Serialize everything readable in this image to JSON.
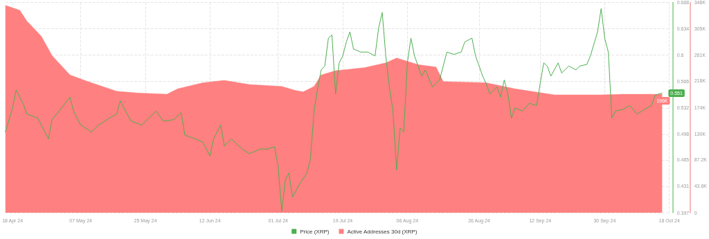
{
  "chart_data": {
    "type": "line",
    "legend": "bottom",
    "grid": true,
    "xlim": [
      "2024-04-16",
      "2024-10-18"
    ],
    "xticks": [
      {
        "value": "2024-04-18",
        "label": "18 Apr 24"
      },
      {
        "value": "2024-05-07",
        "label": "07 May 24"
      },
      {
        "value": "2024-05-25",
        "label": "25 May 24"
      },
      {
        "value": "2024-06-12",
        "label": "12 Jun 24"
      },
      {
        "value": "2024-07-01",
        "label": "01 Jul 24"
      },
      {
        "value": "2024-07-19",
        "label": "19 Jul 24"
      },
      {
        "value": "2024-08-06",
        "label": "06 Aug 24"
      },
      {
        "value": "2024-08-26",
        "label": "26 Aug 24"
      },
      {
        "value": "2024-09-12",
        "label": "12 Sep 24"
      },
      {
        "value": "2024-09-30",
        "label": "30 Sep 24"
      },
      {
        "value": "2024-10-18",
        "label": "18 Oct 24"
      }
    ],
    "ylim": [
      0.397,
      0.668
    ],
    "yticks": [
      0.397,
      0.431,
      0.465,
      0.498,
      0.532,
      0.566,
      0.6,
      0.634,
      0.668
    ],
    "y2lim": [
      0,
      348000
    ],
    "y2ticks": [
      0,
      {
        "value": 43600,
        "label": "43.6K"
      },
      {
        "value": 87200,
        "label": "87.2K"
      },
      {
        "value": 130000,
        "label": "130K"
      },
      {
        "value": 174000,
        "label": "174K"
      },
      {
        "value": 218000,
        "label": "218K"
      },
      {
        "value": 261000,
        "label": "261K"
      },
      {
        "value": 305000,
        "label": "305K"
      },
      {
        "value": 348000,
        "label": "348K"
      }
    ],
    "series": [
      {
        "name": "Active Addresses 30d (XRP)",
        "type": "area",
        "axis": "y2",
        "color": "#ff8080",
        "x": [
          "2024-04-16",
          "2024-04-20",
          "2024-04-22",
          "2024-04-26",
          "2024-04-29",
          "2024-05-04",
          "2024-05-09",
          "2024-05-13",
          "2024-05-17",
          "2024-05-23",
          "2024-05-31",
          "2024-06-03",
          "2024-06-10",
          "2024-06-16",
          "2024-06-23",
          "2024-07-02",
          "2024-07-06",
          "2024-07-08",
          "2024-07-11",
          "2024-07-13",
          "2024-07-17",
          "2024-07-25",
          "2024-07-31",
          "2024-08-03",
          "2024-08-09",
          "2024-08-14",
          "2024-08-16",
          "2024-08-28",
          "2024-09-05",
          "2024-09-16",
          "2024-09-29",
          "2024-10-05",
          "2024-10-16"
        ],
        "values": [
          343000,
          335000,
          317000,
          292000,
          260000,
          228000,
          217000,
          209000,
          201000,
          198000,
          196000,
          205000,
          215000,
          219000,
          212000,
          209000,
          202000,
          200000,
          209000,
          228000,
          235000,
          240000,
          248000,
          256000,
          245000,
          241000,
          217000,
          215000,
          205000,
          195000,
          195000,
          196000,
          196000
        ],
        "value_labels": [
          null,
          null,
          null,
          null,
          null,
          null,
          null,
          null,
          null,
          null,
          null,
          null,
          null,
          null,
          null,
          null,
          null,
          null,
          null,
          null,
          null,
          null,
          null,
          null,
          null,
          null,
          null,
          null,
          null,
          null,
          null,
          null,
          "196K"
        ]
      },
      {
        "name": "Price (XRP)",
        "axis": "y",
        "color": "#4caf50",
        "x": [
          "2024-04-16",
          "2024-04-18",
          "2024-04-19",
          "2024-04-21",
          "2024-04-22",
          "2024-04-25",
          "2024-04-27",
          "2024-04-28",
          "2024-04-29",
          "2024-05-01",
          "2024-05-04",
          "2024-05-05",
          "2024-05-07",
          "2024-05-10",
          "2024-05-12",
          "2024-05-15",
          "2024-05-17",
          "2024-05-18",
          "2024-05-21",
          "2024-05-24",
          "2024-05-28",
          "2024-05-30",
          "2024-06-02",
          "2024-06-04",
          "2024-06-05",
          "2024-06-08",
          "2024-06-10",
          "2024-06-12",
          "2024-06-13",
          "2024-06-15",
          "2024-06-16",
          "2024-06-18",
          "2024-06-21",
          "2024-06-23",
          "2024-06-26",
          "2024-06-28",
          "2024-06-30",
          "2024-07-01",
          "2024-07-02",
          "2024-07-03",
          "2024-07-04",
          "2024-07-05",
          "2024-07-07",
          "2024-07-09",
          "2024-07-10",
          "2024-07-11",
          "2024-07-12",
          "2024-07-13",
          "2024-07-14",
          "2024-07-15",
          "2024-07-16",
          "2024-07-17",
          "2024-07-18",
          "2024-07-19",
          "2024-07-20",
          "2024-07-21",
          "2024-07-22",
          "2024-07-24",
          "2024-07-26",
          "2024-07-28",
          "2024-07-29",
          "2024-07-30",
          "2024-07-31",
          "2024-08-01",
          "2024-08-02",
          "2024-08-03",
          "2024-08-04",
          "2024-08-05",
          "2024-08-06",
          "2024-08-07",
          "2024-08-08",
          "2024-08-09",
          "2024-08-10",
          "2024-08-11",
          "2024-08-13",
          "2024-08-15",
          "2024-08-17",
          "2024-08-19",
          "2024-08-21",
          "2024-08-22",
          "2024-08-24",
          "2024-08-25",
          "2024-08-26",
          "2024-08-27",
          "2024-08-28",
          "2024-08-29",
          "2024-08-31",
          "2024-09-01",
          "2024-09-02",
          "2024-09-03",
          "2024-09-04",
          "2024-09-05",
          "2024-09-07",
          "2024-09-09",
          "2024-09-11",
          "2024-09-12",
          "2024-09-13",
          "2024-09-14",
          "2024-09-15",
          "2024-09-17",
          "2024-09-18",
          "2024-09-20",
          "2024-09-22",
          "2024-09-23",
          "2024-09-25",
          "2024-09-26",
          "2024-09-28",
          "2024-09-29",
          "2024-09-30",
          "2024-10-01",
          "2024-10-02",
          "2024-10-03",
          "2024-10-05",
          "2024-10-07",
          "2024-10-09",
          "2024-10-11",
          "2024-10-13",
          "2024-10-14",
          "2024-10-15",
          "2024-10-16"
        ],
        "values": [
          0.501,
          0.532,
          0.555,
          0.537,
          0.524,
          0.519,
          0.501,
          0.492,
          0.517,
          0.528,
          0.546,
          0.528,
          0.51,
          0.501,
          0.51,
          0.519,
          0.524,
          0.541,
          0.515,
          0.51,
          0.528,
          0.515,
          0.517,
          0.526,
          0.497,
          0.492,
          0.488,
          0.47,
          0.492,
          0.51,
          0.483,
          0.492,
          0.479,
          0.473,
          0.479,
          0.479,
          0.482,
          0.457,
          0.399,
          0.439,
          0.448,
          0.417,
          0.434,
          0.448,
          0.466,
          0.528,
          0.557,
          0.581,
          0.586,
          0.622,
          0.626,
          0.55,
          0.59,
          0.599,
          0.617,
          0.63,
          0.608,
          0.604,
          0.604,
          0.599,
          0.635,
          0.655,
          0.599,
          0.559,
          0.528,
          0.452,
          0.506,
          0.501,
          0.59,
          0.622,
          0.599,
          0.586,
          0.573,
          0.581,
          0.559,
          0.568,
          0.604,
          0.601,
          0.604,
          0.617,
          0.622,
          0.599,
          0.586,
          0.573,
          0.563,
          0.55,
          0.559,
          0.546,
          0.568,
          0.55,
          0.519,
          0.532,
          0.528,
          0.538,
          0.535,
          0.563,
          0.59,
          0.586,
          0.573,
          0.59,
          0.577,
          0.586,
          0.581,
          0.586,
          0.588,
          0.599,
          0.63,
          0.66,
          0.622,
          0.604,
          0.519,
          0.528,
          0.53,
          0.535,
          0.524,
          0.53,
          0.535,
          0.548,
          0.55,
          0.551
        ],
        "value_labels": [
          null,
          null,
          null,
          null,
          null,
          null,
          null,
          null,
          null,
          null,
          null,
          null,
          null,
          null,
          null,
          null,
          null,
          null,
          null,
          null,
          null,
          null,
          null,
          null,
          null,
          null,
          null,
          null,
          null,
          null,
          null,
          null,
          null,
          null,
          null,
          null,
          null,
          null,
          null,
          null,
          null,
          null,
          null,
          null,
          null,
          null,
          null,
          null,
          null,
          null,
          null,
          null,
          null,
          null,
          null,
          null,
          null,
          null,
          null,
          null,
          null,
          null,
          null,
          null,
          null,
          null,
          null,
          null,
          null,
          null,
          null,
          null,
          null,
          null,
          null,
          null,
          null,
          null,
          null,
          null,
          null,
          null,
          null,
          null,
          null,
          null,
          null,
          null,
          null,
          null,
          null,
          null,
          null,
          null,
          null,
          null,
          null,
          null,
          null,
          null,
          null,
          null,
          null,
          null,
          null,
          null,
          null,
          null,
          null,
          null,
          null,
          null,
          null,
          null,
          null,
          null,
          null,
          null,
          null,
          "0.551"
        ]
      }
    ]
  }
}
